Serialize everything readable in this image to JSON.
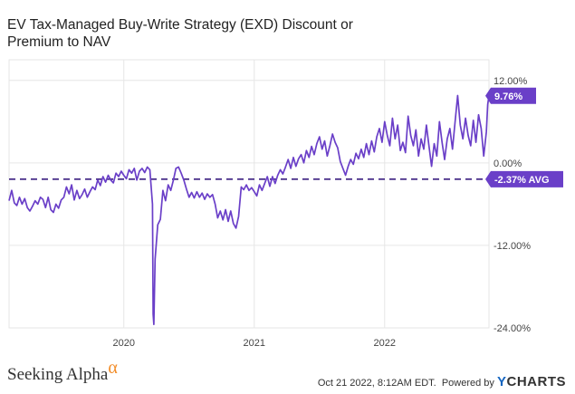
{
  "header": {
    "title": "EV Tax-Managed Buy-Write Strategy (EXD) Discount or Premium to NAV"
  },
  "footer": {
    "brand_left": "Seeking Alpha",
    "brand_left_symbol": "α",
    "timestamp": "Oct 21 2022, 8:12AM EDT.",
    "powered_by": "Powered by",
    "brand_right_prefix": "Y",
    "brand_right": "CHARTS"
  },
  "colors": {
    "series": "#6a3fc8",
    "avg_line": "#3b1f80",
    "grid": "#e6e6e6",
    "brand_y": "#1565c0",
    "alpha": "#f28c28"
  },
  "chart_data": {
    "type": "line",
    "title": "EV Tax-Managed Buy-Write Strategy (EXD) Discount or Premium to NAV",
    "xlabel": "",
    "ylabel": "",
    "xlim": [
      2019.12,
      2022.8
    ],
    "ylim": [
      -24,
      15
    ],
    "y_ticks": [
      12,
      0,
      -12,
      -24
    ],
    "y_tick_labels": [
      "12.00%",
      "0.00%",
      "-12.00%",
      "-24.00%"
    ],
    "x_ticks": [
      2020,
      2021,
      2022
    ],
    "x_tick_labels": [
      "2020",
      "2021",
      "2022"
    ],
    "grid": true,
    "average": {
      "value": -2.37,
      "label": "-2.37% AVG"
    },
    "last": {
      "value": 9.76,
      "label": "9.76%"
    },
    "series": [
      {
        "values": [
          [
            2019.12,
            -5.5
          ],
          [
            2019.14,
            -4.0
          ],
          [
            2019.16,
            -5.8
          ],
          [
            2019.18,
            -6.2
          ],
          [
            2019.2,
            -5.0
          ],
          [
            2019.22,
            -6.0
          ],
          [
            2019.24,
            -5.2
          ],
          [
            2019.26,
            -6.5
          ],
          [
            2019.28,
            -7.0
          ],
          [
            2019.3,
            -6.3
          ],
          [
            2019.32,
            -5.5
          ],
          [
            2019.34,
            -6.0
          ],
          [
            2019.36,
            -5.0
          ],
          [
            2019.38,
            -5.3
          ],
          [
            2019.4,
            -6.5
          ],
          [
            2019.42,
            -5.0
          ],
          [
            2019.44,
            -6.8
          ],
          [
            2019.46,
            -7.2
          ],
          [
            2019.48,
            -6.0
          ],
          [
            2019.5,
            -6.6
          ],
          [
            2019.52,
            -5.4
          ],
          [
            2019.54,
            -5.0
          ],
          [
            2019.56,
            -3.5
          ],
          [
            2019.58,
            -4.5
          ],
          [
            2019.6,
            -3.2
          ],
          [
            2019.62,
            -5.4
          ],
          [
            2019.64,
            -4.0
          ],
          [
            2019.66,
            -5.2
          ],
          [
            2019.68,
            -4.6
          ],
          [
            2019.7,
            -3.8
          ],
          [
            2019.72,
            -5.0
          ],
          [
            2019.74,
            -4.2
          ],
          [
            2019.76,
            -3.5
          ],
          [
            2019.78,
            -3.9
          ],
          [
            2019.8,
            -2.5
          ],
          [
            2019.82,
            -3.3
          ],
          [
            2019.84,
            -2.0
          ],
          [
            2019.86,
            -2.8
          ],
          [
            2019.88,
            -1.8
          ],
          [
            2019.9,
            -2.5
          ],
          [
            2019.92,
            -2.9
          ],
          [
            2019.94,
            -1.5
          ],
          [
            2019.96,
            -2.0
          ],
          [
            2019.98,
            -1.2
          ],
          [
            2020.0,
            -1.8
          ],
          [
            2020.02,
            -2.3
          ],
          [
            2020.04,
            -1.0
          ],
          [
            2020.06,
            -1.5
          ],
          [
            2020.08,
            -0.8
          ],
          [
            2020.1,
            -2.5
          ],
          [
            2020.12,
            -1.2
          ],
          [
            2020.14,
            -0.8
          ],
          [
            2020.16,
            -1.4
          ],
          [
            2020.18,
            -0.6
          ],
          [
            2020.2,
            -1.0
          ],
          [
            2020.22,
            -6.0
          ],
          [
            2020.225,
            -22.0
          ],
          [
            2020.23,
            -23.5
          ],
          [
            2020.24,
            -14.0
          ],
          [
            2020.26,
            -9.0
          ],
          [
            2020.28,
            -8.2
          ],
          [
            2020.3,
            -4.0
          ],
          [
            2020.32,
            -5.5
          ],
          [
            2020.34,
            -3.2
          ],
          [
            2020.36,
            -4.0
          ],
          [
            2020.38,
            -2.5
          ],
          [
            2020.4,
            -0.8
          ],
          [
            2020.42,
            -0.6
          ],
          [
            2020.44,
            -1.5
          ],
          [
            2020.46,
            -2.5
          ],
          [
            2020.48,
            -3.8
          ],
          [
            2020.5,
            -5.0
          ],
          [
            2020.52,
            -4.3
          ],
          [
            2020.54,
            -5.1
          ],
          [
            2020.56,
            -4.2
          ],
          [
            2020.58,
            -5.0
          ],
          [
            2020.6,
            -4.4
          ],
          [
            2020.62,
            -5.3
          ],
          [
            2020.64,
            -4.5
          ],
          [
            2020.66,
            -5.0
          ],
          [
            2020.68,
            -4.6
          ],
          [
            2020.7,
            -6.0
          ],
          [
            2020.72,
            -8.0
          ],
          [
            2020.74,
            -7.0
          ],
          [
            2020.76,
            -8.3
          ],
          [
            2020.78,
            -6.8
          ],
          [
            2020.8,
            -8.5
          ],
          [
            2020.82,
            -7.0
          ],
          [
            2020.84,
            -8.8
          ],
          [
            2020.86,
            -9.5
          ],
          [
            2020.88,
            -7.8
          ],
          [
            2020.9,
            -3.5
          ],
          [
            2020.92,
            -3.9
          ],
          [
            2020.94,
            -3.2
          ],
          [
            2020.96,
            -4.0
          ],
          [
            2020.98,
            -3.6
          ],
          [
            2021.0,
            -4.2
          ],
          [
            2021.02,
            -4.8
          ],
          [
            2021.04,
            -3.2
          ],
          [
            2021.06,
            -4.0
          ],
          [
            2021.08,
            -3.0
          ],
          [
            2021.1,
            -2.0
          ],
          [
            2021.12,
            -3.4
          ],
          [
            2021.14,
            -2.0
          ],
          [
            2021.16,
            -3.0
          ],
          [
            2021.18,
            -1.8
          ],
          [
            2021.2,
            -1.0
          ],
          [
            2021.22,
            -1.6
          ],
          [
            2021.24,
            -0.6
          ],
          [
            2021.26,
            0.5
          ],
          [
            2021.28,
            -0.8
          ],
          [
            2021.3,
            0.8
          ],
          [
            2021.32,
            -0.5
          ],
          [
            2021.34,
            0.6
          ],
          [
            2021.36,
            1.2
          ],
          [
            2021.38,
            0.0
          ],
          [
            2021.4,
            1.8
          ],
          [
            2021.42,
            0.8
          ],
          [
            2021.44,
            2.4
          ],
          [
            2021.46,
            1.2
          ],
          [
            2021.48,
            2.8
          ],
          [
            2021.5,
            3.8
          ],
          [
            2021.52,
            2.0
          ],
          [
            2021.54,
            3.2
          ],
          [
            2021.56,
            1.0
          ],
          [
            2021.58,
            2.5
          ],
          [
            2021.6,
            4.2
          ],
          [
            2021.62,
            3.0
          ],
          [
            2021.64,
            2.2
          ],
          [
            2021.66,
            0.2
          ],
          [
            2021.68,
            -0.8
          ],
          [
            2021.7,
            -1.8
          ],
          [
            2021.72,
            -0.5
          ],
          [
            2021.74,
            0.5
          ],
          [
            2021.76,
            -0.2
          ],
          [
            2021.78,
            1.4
          ],
          [
            2021.8,
            0.6
          ],
          [
            2021.82,
            2.0
          ],
          [
            2021.84,
            0.8
          ],
          [
            2021.86,
            2.8
          ],
          [
            2021.88,
            1.2
          ],
          [
            2021.9,
            3.2
          ],
          [
            2021.92,
            1.6
          ],
          [
            2021.94,
            3.8
          ],
          [
            2021.96,
            5.0
          ],
          [
            2021.98,
            3.0
          ],
          [
            2022.0,
            6.0
          ],
          [
            2022.02,
            4.0
          ],
          [
            2022.04,
            2.5
          ],
          [
            2022.06,
            6.5
          ],
          [
            2022.08,
            3.5
          ],
          [
            2022.1,
            5.5
          ],
          [
            2022.12,
            1.8
          ],
          [
            2022.14,
            3.0
          ],
          [
            2022.16,
            1.5
          ],
          [
            2022.18,
            6.8
          ],
          [
            2022.2,
            4.0
          ],
          [
            2022.22,
            2.5
          ],
          [
            2022.24,
            4.8
          ],
          [
            2022.26,
            1.0
          ],
          [
            2022.28,
            3.5
          ],
          [
            2022.3,
            2.0
          ],
          [
            2022.32,
            5.5
          ],
          [
            2022.34,
            2.5
          ],
          [
            2022.36,
            -0.5
          ],
          [
            2022.38,
            2.8
          ],
          [
            2022.4,
            1.0
          ],
          [
            2022.42,
            6.0
          ],
          [
            2022.44,
            3.0
          ],
          [
            2022.46,
            0.5
          ],
          [
            2022.48,
            3.5
          ],
          [
            2022.5,
            5.0
          ],
          [
            2022.52,
            2.0
          ],
          [
            2022.54,
            6.0
          ],
          [
            2022.56,
            9.8
          ],
          [
            2022.58,
            5.5
          ],
          [
            2022.6,
            3.5
          ],
          [
            2022.62,
            6.5
          ],
          [
            2022.64,
            4.0
          ],
          [
            2022.66,
            2.5
          ],
          [
            2022.68,
            6.2
          ],
          [
            2022.7,
            3.0
          ],
          [
            2022.72,
            7.0
          ],
          [
            2022.74,
            5.0
          ],
          [
            2022.76,
            1.0
          ],
          [
            2022.78,
            4.5
          ],
          [
            2022.79,
            8.5
          ],
          [
            2022.8,
            9.76
          ]
        ]
      }
    ]
  }
}
